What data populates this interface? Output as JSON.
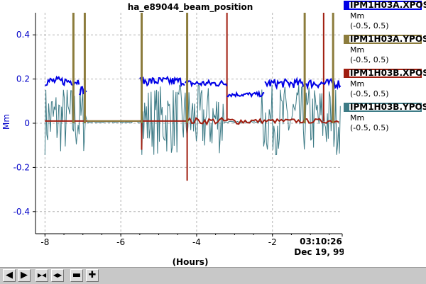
{
  "chart_data": {
    "type": "line",
    "title": "ha_e89044_beam_position",
    "ylabel": "Mm",
    "xlabel": "(Hours)",
    "ylim": [
      -0.5,
      0.5
    ],
    "xlim": [
      -8.25,
      -0.16
    ],
    "x_ticks": [
      "-8",
      "-6",
      "-4",
      "-2"
    ],
    "y_ticks": [
      "0.4",
      "0.2",
      "0",
      "-0.2",
      "-0.4"
    ],
    "time_label": "03:10:26",
    "date_label": "Dec 19, 99",
    "grid": true,
    "legend_placement": "right",
    "series": [
      {
        "name": "IPM1H03A.XPOS",
        "unit": "Mm",
        "range": "(-0.5, 0.5)",
        "color": "#0000e6",
        "segments": [
          {
            "x0": -8.0,
            "x1": -7.1,
            "mean": 0.19,
            "noise": 0.02
          },
          {
            "x0": -7.1,
            "x1": -6.9,
            "mean": 0.15,
            "noise": 0.02
          },
          {
            "x0": -5.5,
            "x1": -4.3,
            "mean": 0.19,
            "noise": 0.02
          },
          {
            "x0": -4.3,
            "x1": -3.2,
            "mean": 0.18,
            "noise": 0.015
          },
          {
            "x0": -3.2,
            "x1": -2.2,
            "mean": 0.13,
            "noise": 0.01
          },
          {
            "x0": -2.2,
            "x1": -0.2,
            "mean": 0.18,
            "noise": 0.02
          }
        ]
      },
      {
        "name": "IPM1H03A.YPOS",
        "unit": "Mm",
        "range": "(-0.5, 0.5)",
        "color": "#8c7c3c",
        "spikes": [
          -7.25,
          -6.95,
          -5.45,
          -4.25,
          -1.15,
          -0.4
        ]
      },
      {
        "name": "IPM1H03B.XPOS",
        "unit": "Mm",
        "range": "(-0.5, 0.5)",
        "color": "#a01e10",
        "spikes_up": [
          -3.2,
          -0.65
        ],
        "spikes_down": [
          -5.45,
          -4.25
        ]
      },
      {
        "name": "IPM1H03B.YPOS",
        "unit": "Mm",
        "range": "(-0.5, 0.5)",
        "color": "#3d7b86",
        "noisy": [
          [
            -8.0,
            -6.9
          ],
          [
            -5.45,
            -3.3
          ],
          [
            -2.3,
            -0.2
          ]
        ]
      }
    ]
  },
  "toolbar": {
    "left_icon": "◀",
    "right_icon": "▶",
    "zoom_in_icon": "▶◀",
    "zoom_out_icon": "◀▶",
    "pan_icon": "▬",
    "add_icon": "✚"
  }
}
